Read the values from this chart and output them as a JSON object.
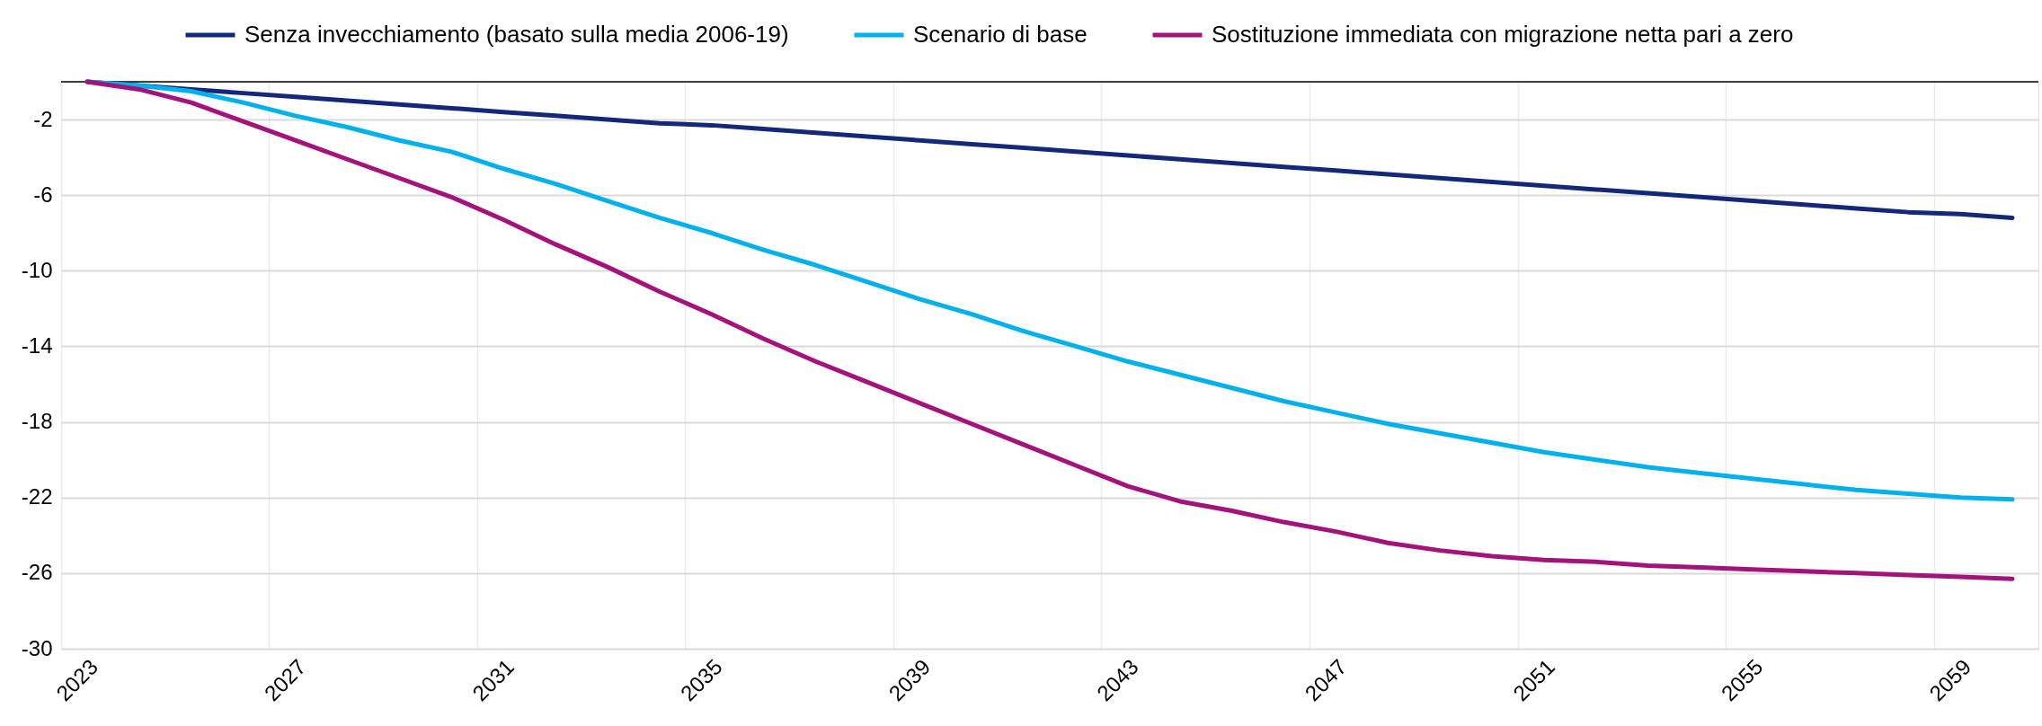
{
  "chart_data": {
    "type": "line",
    "categories": [
      "2023",
      null,
      null,
      null,
      "2027",
      null,
      null,
      null,
      "2031",
      null,
      null,
      null,
      "2035",
      null,
      null,
      null,
      "2039",
      null,
      null,
      null,
      "2043",
      null,
      null,
      null,
      "2047",
      null,
      null,
      null,
      "2051",
      null,
      null,
      null,
      "2055",
      null,
      null,
      null,
      "2059",
      null
    ],
    "series": [
      {
        "name": "Senza invecchiamento (basato sulla media 2006-19)",
        "color": "#14287b",
        "values": [
          0,
          -0.2,
          -0.4,
          -0.6,
          -0.8,
          -1.0,
          -1.2,
          -1.4,
          -1.6,
          -1.8,
          -2.0,
          -2.2,
          -2.3,
          -2.5,
          -2.7,
          -2.9,
          -3.1,
          -3.3,
          -3.5,
          -3.7,
          -3.9,
          -4.1,
          -4.3,
          -4.5,
          -4.7,
          -4.9,
          -5.1,
          -5.3,
          -5.5,
          -5.7,
          -5.9,
          -6.1,
          -6.3,
          -6.5,
          -6.7,
          -6.9,
          -7.0,
          -7.2
        ]
      },
      {
        "name": "Scenario di base",
        "color": "#00b1ee",
        "values": [
          0,
          -0.2,
          -0.5,
          -1.1,
          -1.8,
          -2.4,
          -3.1,
          -3.7,
          -4.6,
          -5.4,
          -6.3,
          -7.2,
          -8.0,
          -8.9,
          -9.7,
          -10.6,
          -11.5,
          -12.3,
          -13.2,
          -14.0,
          -14.8,
          -15.5,
          -16.2,
          -16.9,
          -17.5,
          -18.1,
          -18.6,
          -19.1,
          -19.6,
          -20.0,
          -20.4,
          -20.7,
          -21.0,
          -21.3,
          -21.6,
          -21.8,
          -22.0,
          -22.1
        ]
      },
      {
        "name": "Sostituzione immediata con migrazione netta pari a zero",
        "color": "#a4127c",
        "values": [
          0,
          -0.4,
          -1.1,
          -2.1,
          -3.1,
          -4.1,
          -5.1,
          -6.1,
          -7.3,
          -8.6,
          -9.8,
          -11.1,
          -12.3,
          -13.6,
          -14.8,
          -15.9,
          -17.0,
          -18.1,
          -19.2,
          -20.3,
          -21.4,
          -22.2,
          -22.7,
          -23.3,
          -23.8,
          -24.4,
          -24.8,
          -25.1,
          -25.3,
          -25.4,
          -25.6,
          -25.7,
          -25.8,
          -25.9,
          -26.0,
          -26.1,
          -26.2,
          -26.3
        ]
      }
    ],
    "ylim": [
      -30,
      0
    ],
    "yticks": [
      -2,
      -6,
      -10,
      -14,
      -18,
      -22,
      -26,
      -30
    ],
    "grid": true,
    "legend": "top",
    "line_style": "solid",
    "ref_lines": [
      {
        "axis": "y",
        "value": 0,
        "color": "#000000"
      }
    ]
  }
}
